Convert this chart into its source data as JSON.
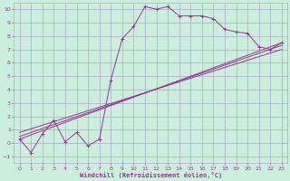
{
  "title": "",
  "xlabel": "Windchill (Refroidissement éolien,°C)",
  "bg_color": "#cceedd",
  "grid_color": "#aaaacc",
  "line_color": "#993399",
  "xlim": [
    -0.5,
    23.5
  ],
  "ylim": [
    -1.5,
    10.5
  ],
  "xticks": [
    0,
    1,
    2,
    3,
    4,
    5,
    6,
    7,
    8,
    9,
    10,
    11,
    12,
    13,
    14,
    15,
    16,
    17,
    18,
    19,
    20,
    21,
    22,
    23
  ],
  "yticks": [
    -1,
    0,
    1,
    2,
    3,
    4,
    5,
    6,
    7,
    8,
    9,
    10
  ],
  "series1_x": [
    0,
    1,
    2,
    3,
    4,
    5,
    6,
    7,
    8,
    9,
    10,
    11,
    12,
    13,
    14,
    15,
    16,
    17,
    18,
    19,
    20,
    21,
    22,
    23
  ],
  "series1_y": [
    0.3,
    -0.7,
    0.7,
    1.7,
    0.1,
    0.8,
    -0.2,
    0.3,
    4.7,
    7.8,
    8.7,
    10.2,
    10.0,
    10.2,
    9.5,
    9.5,
    9.5,
    9.3,
    8.5,
    8.3,
    8.2,
    7.2,
    7.0,
    7.5
  ],
  "series2_x": [
    0,
    23
  ],
  "series2_y": [
    0.3,
    7.5
  ],
  "series3_x": [
    0,
    23
  ],
  "series3_y": [
    0.5,
    7.3
  ],
  "series4_x": [
    0,
    23
  ],
  "series4_y": [
    0.8,
    7.0
  ]
}
